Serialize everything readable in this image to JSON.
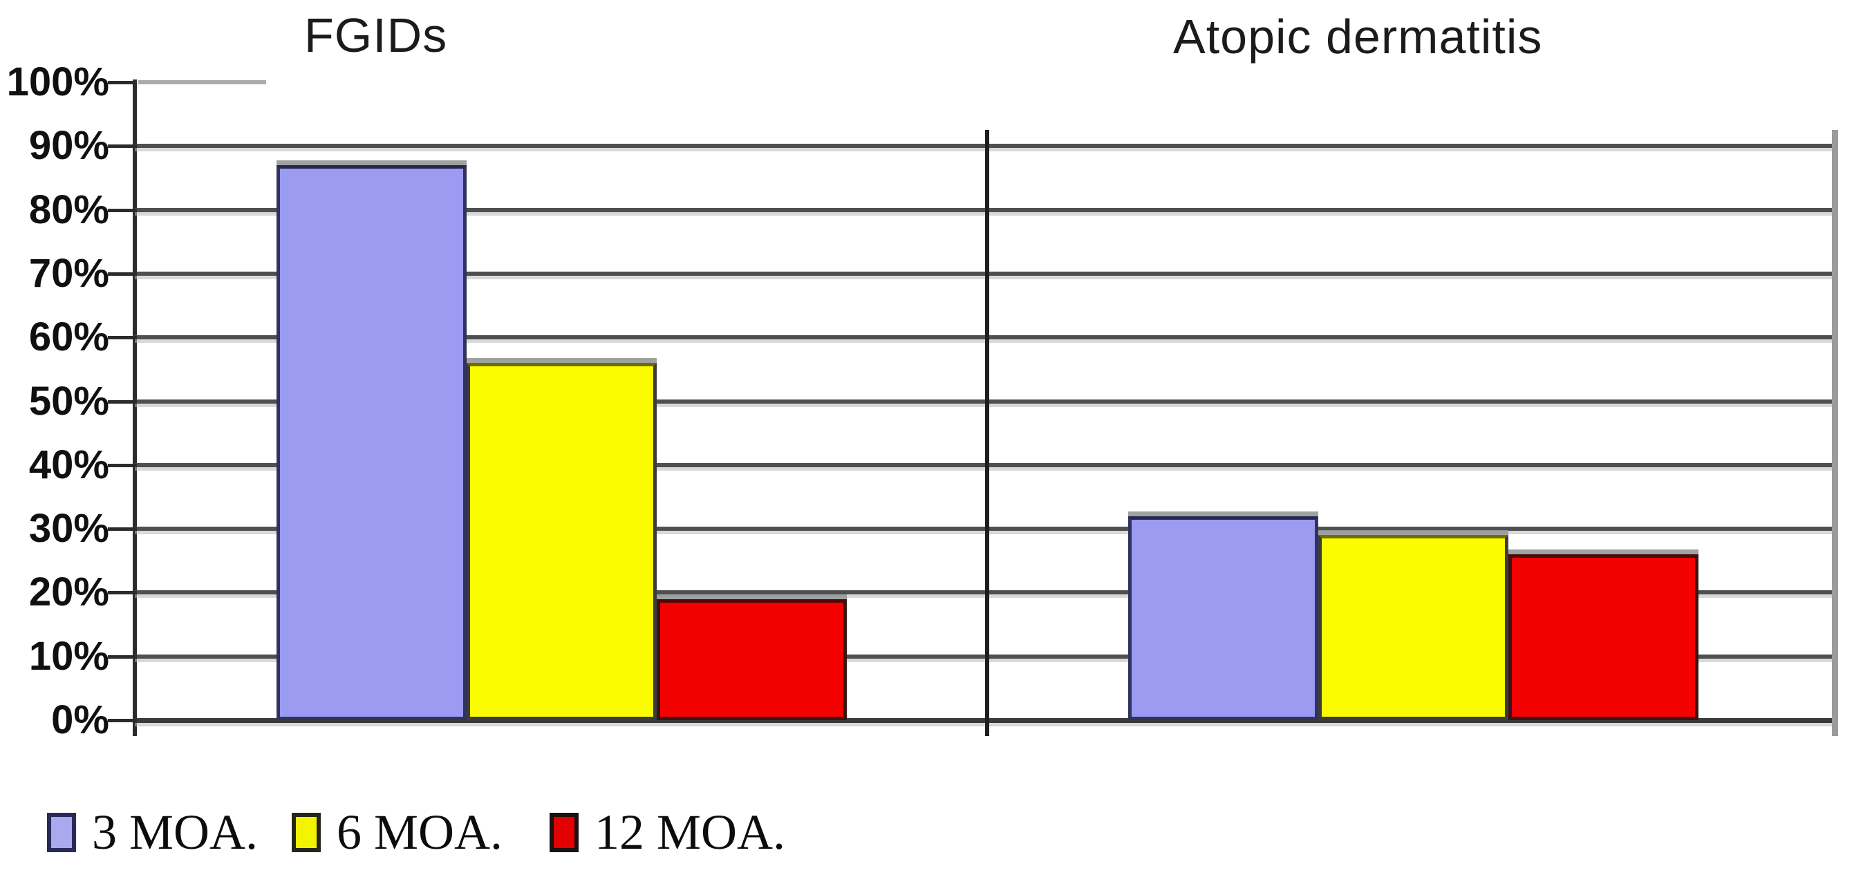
{
  "chart_data": {
    "type": "bar",
    "categories": [
      "FGIDs",
      "Atopic dermatitis"
    ],
    "series": [
      {
        "name": "3 MOA.",
        "values": [
          87,
          32
        ],
        "color": "#9b9bf2",
        "border": "#32325f",
        "border_top": "#26264f"
      },
      {
        "name": "6 MOA.",
        "values": [
          56,
          29
        ],
        "color": "#fcfc00",
        "border": "#3c3c40",
        "border_top": "#6e6e00"
      },
      {
        "name": "12 MOA.",
        "values": [
          19,
          26
        ],
        "color": "#f30000",
        "border": "#3a1414",
        "border_top": "#4d0808"
      }
    ],
    "ylabel": "",
    "ylim": [
      0,
      100
    ],
    "ytick_step": 10,
    "yticks": [
      "100%",
      "90%",
      "80%",
      "70%",
      "60%",
      "50%",
      "40%",
      "30%",
      "20%",
      "10%",
      "0%"
    ],
    "grid": true,
    "legend_position": "bottom-left"
  },
  "legend": {
    "items": [
      {
        "swatch_color": "#a9a9ee",
        "swatch_border": "#2a2a5a"
      },
      {
        "swatch_color": "#f4f400",
        "swatch_border": "#26261a"
      },
      {
        "swatch_color": "#e30000",
        "swatch_border": "#1c1010"
      }
    ]
  }
}
